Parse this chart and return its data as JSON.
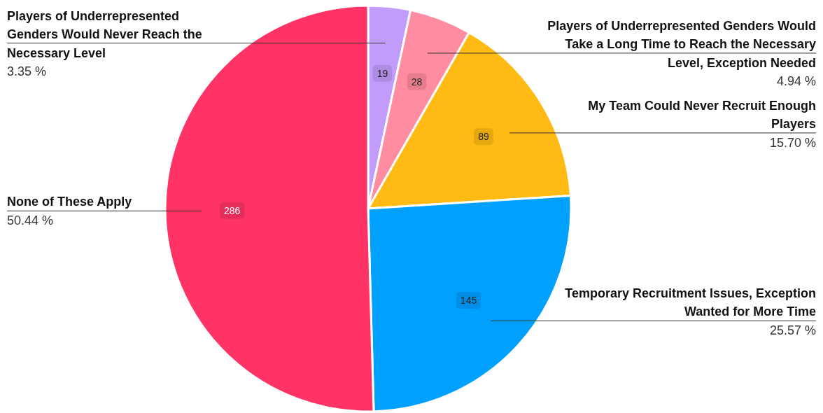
{
  "chart_data": {
    "type": "pie",
    "categories": [
      "Players of Underrepresented Genders Would Never Reach the Necessary Level",
      "Players of Underrepresented Genders Would Take a Long Time to Reach the Necessary Level, Exception Needed",
      "My Team Could Never Recruit Enough Players",
      "Temporary Recruitment Issues, Exception Wanted for More Time",
      "None of These Apply"
    ],
    "values": [
      19,
      28,
      89,
      145,
      286
    ],
    "colors": [
      "#c29cfb",
      "#ff8ca0",
      "#ffbb13",
      "#00a0ff",
      "#ff3366"
    ],
    "data_labels": true,
    "annotations": [
      "3.35 %",
      "4.94 %",
      "15.70 %",
      "25.57 %",
      "50.44 %"
    ]
  }
}
